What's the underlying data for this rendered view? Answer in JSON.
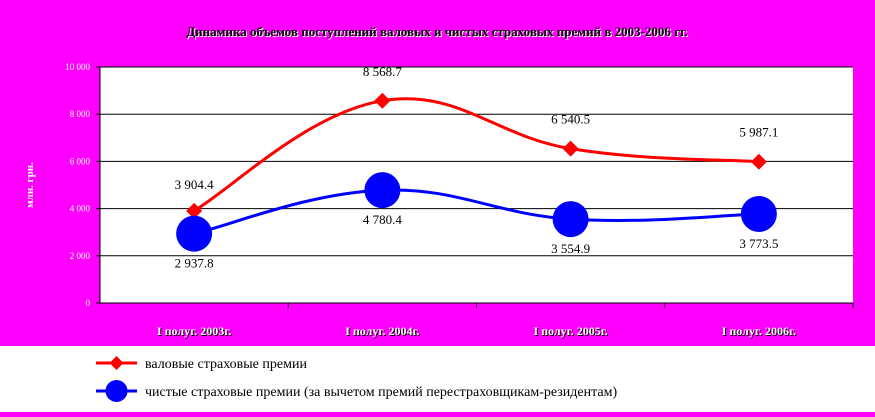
{
  "chart_data": {
    "type": "line",
    "title": "Динамика объемов поступлений валовых и чистых страховых премий в 2003-2006 гг.",
    "xlabel": "",
    "ylabel": "млн. грн.",
    "categories": [
      "I полуг. 2003г.",
      "I полуг. 2004г.",
      "I полуг. 2005г.",
      "I полуг. 2006г."
    ],
    "ylim": [
      0,
      10000
    ],
    "yticks": [
      0,
      2000,
      4000,
      6000,
      8000,
      10000
    ],
    "ytick_labels": [
      "0",
      "2 000",
      "4 000",
      "6 000",
      "8 000",
      "10 000"
    ],
    "grid": true,
    "legend_position": "bottom",
    "series": [
      {
        "name": "валовые страховые премии",
        "values": [
          3904.4,
          8568.7,
          6540.5,
          5987.1
        ],
        "labels": [
          "3 904.4",
          "8 568.7",
          "6 540.5",
          "5 987.1"
        ],
        "color": "#ff0000",
        "marker": "diamond"
      },
      {
        "name": "чистые страховые премии (за вычетом премий перестраховщикам-резидентам)",
        "values": [
          2937.8,
          4780.4,
          3554.9,
          3773.5
        ],
        "labels": [
          "2 937.8",
          "4 780.4",
          "3 554.9",
          "3 773.5"
        ],
        "color": "#0000ff",
        "marker": "circle"
      }
    ]
  },
  "colors": {
    "background": "#ff00ff",
    "plot_area": "#ffffff",
    "grid": "#000000",
    "legend_box": "#ffffff"
  }
}
